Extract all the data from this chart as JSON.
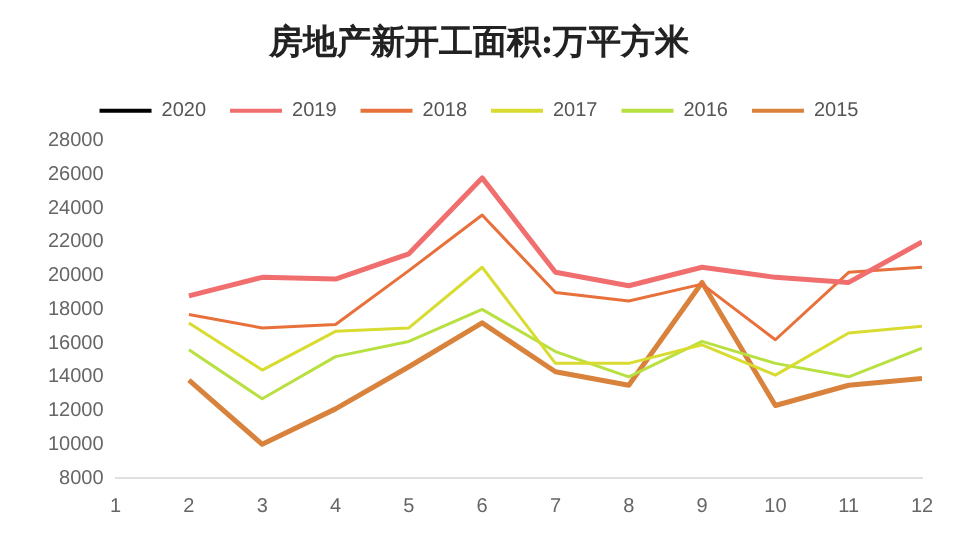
{
  "chart_data": {
    "type": "line",
    "title": "房地产新开工面积:万平方米",
    "x": [
      2,
      3,
      4,
      5,
      6,
      7,
      8,
      9,
      10,
      11,
      12
    ],
    "xlim": [
      1,
      12
    ],
    "xticks": [
      1,
      2,
      3,
      4,
      5,
      6,
      7,
      8,
      9,
      10,
      11,
      12
    ],
    "series": [
      {
        "name": "2020",
        "color": "#000000",
        "values": [
          null,
          null,
          null,
          null,
          null,
          null,
          null,
          null,
          null,
          null,
          null
        ]
      },
      {
        "name": "2019",
        "color": "#f06e6e",
        "values": [
          18800,
          19900,
          19800,
          21300,
          25800,
          20200,
          19400,
          20500,
          19900,
          19600,
          22000
        ]
      },
      {
        "name": "2018",
        "color": "#e8703a",
        "values": [
          17700,
          16900,
          17100,
          20300,
          23600,
          19000,
          18500,
          19500,
          16200,
          20200,
          20500
        ]
      },
      {
        "name": "2017",
        "color": "#d8dc30",
        "values": [
          17200,
          14400,
          16700,
          16900,
          20500,
          14800,
          14800,
          15900,
          14100,
          16600,
          17000
        ]
      },
      {
        "name": "2016",
        "color": "#b8e040",
        "values": [
          15600,
          12700,
          15200,
          16100,
          18000,
          15500,
          14000,
          16100,
          14800,
          14000,
          15700
        ]
      },
      {
        "name": "2015",
        "color": "#d8823c",
        "values": [
          13800,
          10000,
          12100,
          14600,
          17200,
          14300,
          13500,
          19600,
          12300,
          13500,
          13900
        ]
      }
    ],
    "ylim": [
      8000,
      28000
    ],
    "yticks": [
      8000,
      10000,
      12000,
      14000,
      16000,
      18000,
      20000,
      22000,
      24000,
      26000,
      28000
    ],
    "grid": false,
    "legend": "top",
    "marker": "none",
    "line_style": "solid"
  }
}
